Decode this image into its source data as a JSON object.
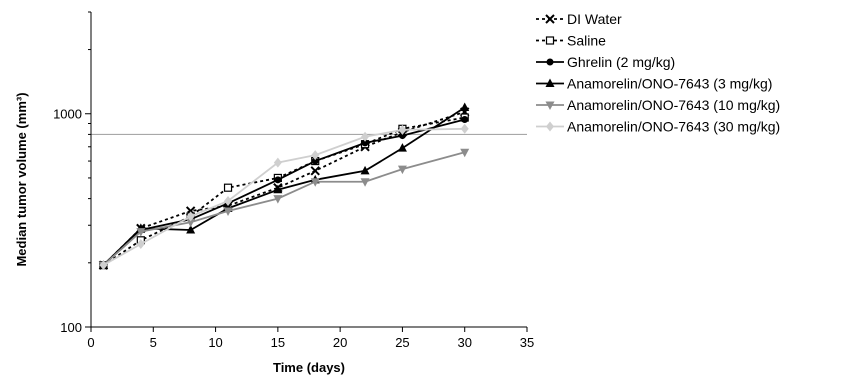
{
  "chart_data": {
    "type": "line",
    "xlabel": "Time (days)",
    "ylabel": "Median tumor volume (mm³)",
    "x_ticks": [
      0,
      5,
      10,
      15,
      20,
      25,
      30,
      35
    ],
    "y_ticks": [
      100,
      1000
    ],
    "xlim": [
      0,
      35
    ],
    "ylim": [
      100,
      3000
    ],
    "y_scale": "log",
    "legend_position": "right",
    "reference_line": {
      "y": 800,
      "color": "#a8a8a8"
    },
    "series": [
      {
        "name": "DI Water",
        "color": "#000000",
        "dash": true,
        "marker": "x",
        "x": [
          1,
          4,
          8,
          11,
          15,
          18,
          22,
          25,
          30
        ],
        "y": [
          195,
          290,
          350,
          370,
          450,
          540,
          700,
          820,
          1020
        ]
      },
      {
        "name": "Saline",
        "color": "#000000",
        "dash": true,
        "marker": "square-open",
        "x": [
          1,
          4,
          8,
          11,
          15,
          18,
          22,
          25,
          30
        ],
        "y": [
          195,
          255,
          330,
          450,
          500,
          600,
          720,
          850,
          960
        ]
      },
      {
        "name": "Ghrelin (2 mg/kg)",
        "color": "#000000",
        "dash": false,
        "marker": "circle",
        "x": [
          1,
          4,
          8,
          11,
          15,
          18,
          22,
          25,
          30
        ],
        "y": [
          195,
          285,
          320,
          380,
          490,
          600,
          730,
          790,
          940
        ]
      },
      {
        "name": "Anamorelin/ONO-7643 (3 mg/kg)",
        "color": "#000000",
        "dash": false,
        "marker": "triangle-up",
        "x": [
          1,
          4,
          8,
          11,
          15,
          18,
          22,
          25,
          30
        ],
        "y": [
          195,
          290,
          285,
          360,
          440,
          490,
          540,
          690,
          1070
        ]
      },
      {
        "name": "Anamorelin/ONO-7643 (10 mg/kg)",
        "color": "#8c8c8c",
        "dash": false,
        "marker": "triangle-down",
        "x": [
          1,
          4,
          8,
          11,
          15,
          18,
          22,
          25,
          30
        ],
        "y": [
          195,
          280,
          310,
          350,
          400,
          480,
          480,
          550,
          660
        ]
      },
      {
        "name": "Anamorelin/ONO-7643 (30 mg/kg)",
        "color": "#cfcfcf",
        "dash": false,
        "marker": "diamond",
        "x": [
          1,
          4,
          8,
          11,
          15,
          18,
          22,
          25,
          30
        ],
        "y": [
          195,
          245,
          330,
          390,
          590,
          640,
          780,
          840,
          850
        ]
      }
    ]
  }
}
